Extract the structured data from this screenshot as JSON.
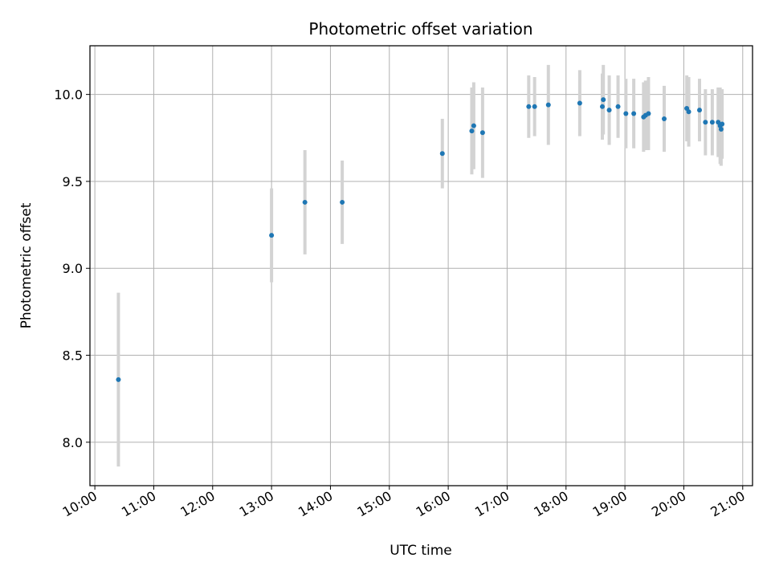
{
  "chart_data": {
    "type": "scatter",
    "title": "Photometric offset variation",
    "xlabel": "UTC time",
    "ylabel": "Photometric offset",
    "xlim": [
      "09:55",
      "21:10"
    ],
    "ylim": [
      7.75,
      10.28
    ],
    "x_ticks": [
      "10:00",
      "11:00",
      "12:00",
      "13:00",
      "14:00",
      "15:00",
      "16:00",
      "17:00",
      "18:00",
      "19:00",
      "20:00",
      "21:00"
    ],
    "y_ticks": [
      "8.0",
      "8.5",
      "9.0",
      "9.5",
      "10.0"
    ],
    "grid": true,
    "point_color": "#1f77b4",
    "errorbar_color": "#d3d3d3",
    "points": [
      {
        "t": "10:24",
        "y": 8.36,
        "err": 0.5
      },
      {
        "t": "13:00",
        "y": 9.19,
        "err": 0.27
      },
      {
        "t": "13:34",
        "y": 9.38,
        "err": 0.3
      },
      {
        "t": "14:12",
        "y": 9.38,
        "err": 0.24
      },
      {
        "t": "15:54",
        "y": 9.66,
        "err": 0.2
      },
      {
        "t": "16:24",
        "y": 9.79,
        "err": 0.25
      },
      {
        "t": "16:26",
        "y": 9.82,
        "err": 0.25
      },
      {
        "t": "16:35",
        "y": 9.78,
        "err": 0.26
      },
      {
        "t": "17:22",
        "y": 9.93,
        "err": 0.18
      },
      {
        "t": "17:28",
        "y": 9.93,
        "err": 0.17
      },
      {
        "t": "17:42",
        "y": 9.94,
        "err": 0.23
      },
      {
        "t": "18:14",
        "y": 9.95,
        "err": 0.19
      },
      {
        "t": "18:37",
        "y": 9.93,
        "err": 0.19
      },
      {
        "t": "18:38",
        "y": 9.97,
        "err": 0.2
      },
      {
        "t": "18:44",
        "y": 9.91,
        "err": 0.2
      },
      {
        "t": "18:53",
        "y": 9.93,
        "err": 0.18
      },
      {
        "t": "19:01",
        "y": 9.89,
        "err": 0.2
      },
      {
        "t": "19:09",
        "y": 9.89,
        "err": 0.2
      },
      {
        "t": "19:19",
        "y": 9.87,
        "err": 0.2
      },
      {
        "t": "19:21",
        "y": 9.88,
        "err": 0.2
      },
      {
        "t": "19:24",
        "y": 9.89,
        "err": 0.21
      },
      {
        "t": "19:40",
        "y": 9.86,
        "err": 0.19
      },
      {
        "t": "20:03",
        "y": 9.92,
        "err": 0.19
      },
      {
        "t": "20:05",
        "y": 9.9,
        "err": 0.2
      },
      {
        "t": "20:16",
        "y": 9.91,
        "err": 0.18
      },
      {
        "t": "20:22",
        "y": 9.84,
        "err": 0.19
      },
      {
        "t": "20:29",
        "y": 9.84,
        "err": 0.19
      },
      {
        "t": "20:35",
        "y": 9.84,
        "err": 0.2
      },
      {
        "t": "20:37",
        "y": 9.82,
        "err": 0.22
      },
      {
        "t": "20:38",
        "y": 9.8,
        "err": 0.21
      },
      {
        "t": "20:39",
        "y": 9.83,
        "err": 0.2
      }
    ]
  }
}
